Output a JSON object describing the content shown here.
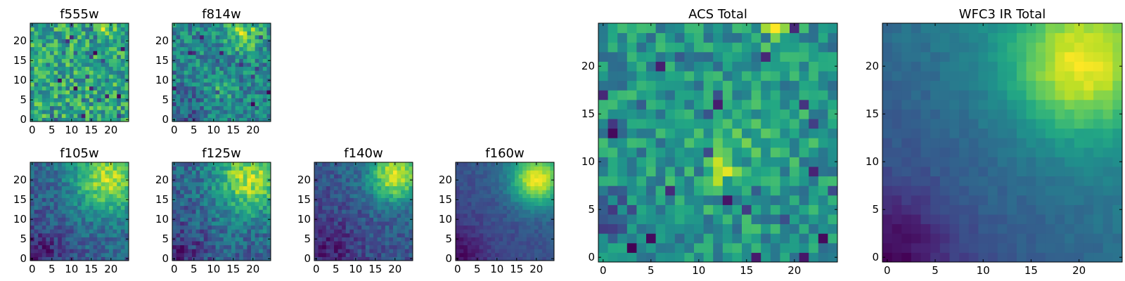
{
  "chart_data": [
    {
      "type": "heatmap",
      "title": "f555w",
      "grid": "25x25",
      "xticks": [
        "0",
        "5",
        "10",
        "15",
        "20"
      ],
      "yticks": [
        "0",
        "5",
        "10",
        "15",
        "20"
      ],
      "xlim": [
        0,
        25
      ],
      "ylim": [
        0,
        25
      ],
      "colormap": "viridis",
      "pattern": "noisy, weak bright patch near x=18,y=24"
    },
    {
      "type": "heatmap",
      "title": "f814w",
      "grid": "25x25",
      "xticks": [
        "0",
        "5",
        "10",
        "15",
        "20"
      ],
      "yticks": [
        "0",
        "5",
        "10",
        "15",
        "20"
      ],
      "xlim": [
        0,
        25
      ],
      "ylim": [
        0,
        25
      ],
      "colormap": "viridis",
      "pattern": "bright patch near x=18,y=22 and x=12,y=8"
    },
    {
      "type": "heatmap",
      "title": "f105w",
      "grid": "25x25",
      "xticks": [
        "0",
        "5",
        "10",
        "15",
        "20"
      ],
      "yticks": [
        "0",
        "5",
        "10",
        "15",
        "20"
      ],
      "xlim": [
        0,
        25
      ],
      "ylim": [
        0,
        25
      ],
      "colormap": "viridis",
      "pattern": "bright upper-right, dark lower-left"
    },
    {
      "type": "heatmap",
      "title": "f125w",
      "grid": "25x25",
      "xticks": [
        "0",
        "5",
        "10",
        "15",
        "20"
      ],
      "yticks": [
        "0",
        "5",
        "10",
        "15",
        "20"
      ],
      "xlim": [
        0,
        25
      ],
      "ylim": [
        0,
        25
      ],
      "colormap": "viridis",
      "pattern": "bright upper-right, dark lower-left"
    },
    {
      "type": "heatmap",
      "title": "f140w",
      "grid": "25x25",
      "xticks": [
        "0",
        "5",
        "10",
        "15",
        "20"
      ],
      "yticks": [
        "0",
        "5",
        "10",
        "15",
        "20"
      ],
      "xlim": [
        0,
        25
      ],
      "ylim": [
        0,
        25
      ],
      "colormap": "viridis",
      "pattern": "bright upper-right, dark lower-left"
    },
    {
      "type": "heatmap",
      "title": "f160w",
      "grid": "25x25",
      "xticks": [
        "0",
        "5",
        "10",
        "15",
        "20"
      ],
      "yticks": [
        "0",
        "5",
        "10",
        "15",
        "20"
      ],
      "xlim": [
        0,
        25
      ],
      "ylim": [
        0,
        25
      ],
      "colormap": "viridis",
      "pattern": "smooth, bright upper-right, dark lower-left"
    },
    {
      "type": "heatmap",
      "title": "ACS Total",
      "grid": "25x25",
      "xticks": [
        "0",
        "5",
        "10",
        "15",
        "20"
      ],
      "yticks": [
        "0",
        "5",
        "10",
        "15",
        "20"
      ],
      "xlim": [
        0,
        25
      ],
      "ylim": [
        0,
        25
      ],
      "colormap": "viridis",
      "pattern": "noisy, bright spots near x=18,y=24 and x=12,y=9"
    },
    {
      "type": "heatmap",
      "title": "WFC3 IR Total",
      "grid": "25x25",
      "xticks": [
        "0",
        "5",
        "10",
        "15",
        "20"
      ],
      "yticks": [
        "0",
        "5",
        "10",
        "15",
        "20"
      ],
      "xlim": [
        0,
        25
      ],
      "ylim": [
        0,
        25
      ],
      "colormap": "viridis",
      "pattern": "smooth, bright upper-right peak near x=20,y=20, dark lower-left"
    }
  ]
}
